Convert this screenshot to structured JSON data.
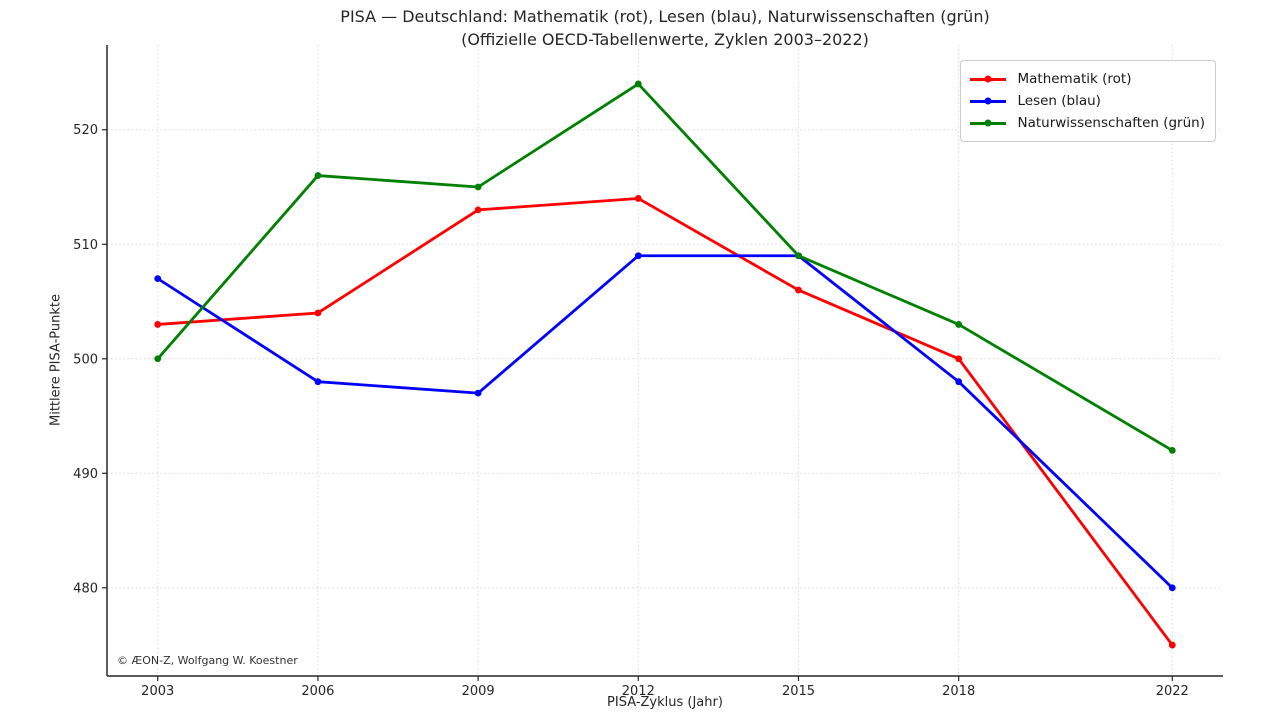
{
  "chart_data": {
    "type": "line",
    "title": "PISA — Deutschland: Mathematik (rot), Lesen (blau), Naturwissenschaften (grün)",
    "subtitle": "(Offizielle OECD-Tabellenwerte, Zyklen 2003–2022)",
    "xlabel": "PISA-Zyklus (Jahr)",
    "ylabel": "Mittlere PISA-Punkte",
    "annotation": "© ÆON-Z, Wolfgang W. Koestner",
    "x": [
      2003,
      2006,
      2009,
      2012,
      2015,
      2018,
      2022
    ],
    "x_tick_labels": [
      "2003",
      "2006",
      "2009",
      "2012",
      "2015",
      "2018",
      "2022"
    ],
    "y_ticks": [
      480,
      490,
      500,
      510,
      520
    ],
    "xlim": [
      2002.05,
      2022.95
    ],
    "ylim": [
      472.3,
      527.4
    ],
    "grid": true,
    "grid_color": "#d9d9d9",
    "axis_color": "#262626",
    "legend_position": "upper right",
    "series": [
      {
        "name": "Mathematik (rot)",
        "color": "#ff0000",
        "values": [
          503,
          504,
          513,
          514,
          506,
          500,
          475
        ]
      },
      {
        "name": "Lesen (blau)",
        "color": "#0000ff",
        "values": [
          507,
          498,
          497,
          509,
          509,
          498,
          480
        ]
      },
      {
        "name": "Naturwissenschaften (grün)",
        "color": "#008000",
        "values": [
          500,
          516,
          515,
          524,
          509,
          503,
          492
        ]
      }
    ]
  }
}
